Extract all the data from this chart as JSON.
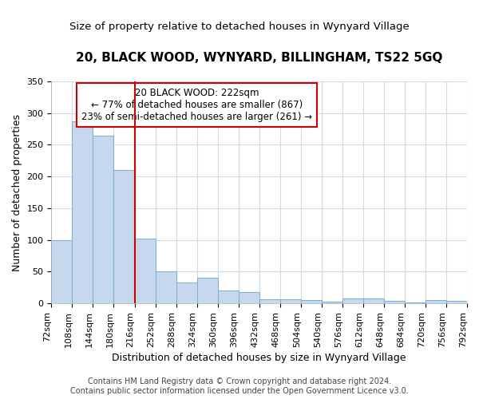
{
  "title": "20, BLACK WOOD, WYNYARD, BILLINGHAM, TS22 5GQ",
  "subtitle": "Size of property relative to detached houses in Wynyard Village",
  "xlabel": "Distribution of detached houses by size in Wynyard Village",
  "ylabel": "Number of detached properties",
  "bar_values": [
    100,
    287,
    265,
    210,
    102,
    51,
    33,
    40,
    20,
    18,
    6,
    6,
    5,
    3,
    8,
    8,
    4,
    2,
    5,
    4
  ],
  "bar_labels": [
    "72sqm",
    "108sqm",
    "144sqm",
    "180sqm",
    "216sqm",
    "252sqm",
    "288sqm",
    "324sqm",
    "360sqm",
    "396sqm",
    "432sqm",
    "468sqm",
    "504sqm",
    "540sqm",
    "576sqm",
    "612sqm",
    "648sqm",
    "684sqm",
    "720sqm",
    "756sqm",
    "792sqm"
  ],
  "bar_color": "#c5d8ed",
  "bar_edge_color": "#7aaed0",
  "bar_width": 1.0,
  "ylim": [
    0,
    350
  ],
  "yticks": [
    0,
    50,
    100,
    150,
    200,
    250,
    300,
    350
  ],
  "red_line_x": 4.0,
  "annotation_text": "20 BLACK WOOD: 222sqm\n← 77% of detached houses are smaller (867)\n23% of semi-detached houses are larger (261) →",
  "annotation_box_color": "#ffffff",
  "annotation_box_edge": "#cc0000",
  "footer_line1": "Contains HM Land Registry data © Crown copyright and database right 2024.",
  "footer_line2": "Contains public sector information licensed under the Open Government Licence v3.0.",
  "plot_bg_color": "#ffffff",
  "fig_bg_color": "#ffffff",
  "grid_color": "#d0daea",
  "title_fontsize": 11,
  "subtitle_fontsize": 9.5,
  "axis_label_fontsize": 9,
  "tick_fontsize": 8,
  "footer_fontsize": 7,
  "annot_fontsize": 8.5
}
